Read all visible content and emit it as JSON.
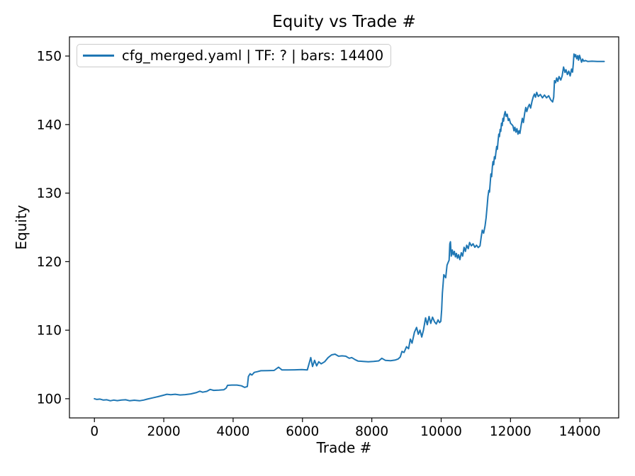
{
  "chart_data": {
    "type": "line",
    "title": "Equity vs Trade #",
    "xlabel": "Trade #",
    "ylabel": "Equity",
    "xlim": [
      -720,
      15120
    ],
    "ylim": [
      97.2,
      152.8
    ],
    "x_ticks": [
      0,
      2000,
      4000,
      6000,
      8000,
      10000,
      12000,
      14000
    ],
    "y_ticks": [
      100,
      110,
      120,
      130,
      140,
      150
    ],
    "grid": false,
    "legend_position": "upper left",
    "axis_color": "#000000",
    "series": [
      {
        "name": "cfg_merged.yaml | TF: ? | bars: 14400",
        "color": "#1f77b4",
        "points": [
          [
            0,
            100.0
          ],
          [
            70,
            99.9
          ],
          [
            160,
            99.95
          ],
          [
            260,
            99.8
          ],
          [
            360,
            99.85
          ],
          [
            460,
            99.7
          ],
          [
            560,
            99.8
          ],
          [
            660,
            99.72
          ],
          [
            780,
            99.8
          ],
          [
            900,
            99.85
          ],
          [
            1020,
            99.7
          ],
          [
            1150,
            99.78
          ],
          [
            1300,
            99.7
          ],
          [
            1420,
            99.8
          ],
          [
            1530,
            99.95
          ],
          [
            1680,
            100.12
          ],
          [
            1830,
            100.3
          ],
          [
            1980,
            100.5
          ],
          [
            2090,
            100.65
          ],
          [
            2200,
            100.58
          ],
          [
            2330,
            100.65
          ],
          [
            2470,
            100.55
          ],
          [
            2620,
            100.6
          ],
          [
            2780,
            100.7
          ],
          [
            2930,
            100.88
          ],
          [
            3040,
            101.1
          ],
          [
            3120,
            100.95
          ],
          [
            3240,
            101.08
          ],
          [
            3340,
            101.35
          ],
          [
            3440,
            101.22
          ],
          [
            3590,
            101.25
          ],
          [
            3730,
            101.3
          ],
          [
            3800,
            101.55
          ],
          [
            3840,
            101.95
          ],
          [
            3960,
            102.0
          ],
          [
            4110,
            102.0
          ],
          [
            4240,
            101.88
          ],
          [
            4330,
            101.65
          ],
          [
            4410,
            101.78
          ],
          [
            4440,
            103.25
          ],
          [
            4490,
            103.65
          ],
          [
            4540,
            103.45
          ],
          [
            4610,
            103.85
          ],
          [
            4700,
            103.95
          ],
          [
            4800,
            104.08
          ],
          [
            4990,
            104.1
          ],
          [
            5180,
            104.12
          ],
          [
            5310,
            104.6
          ],
          [
            5410,
            104.2
          ],
          [
            5590,
            104.2
          ],
          [
            5780,
            104.22
          ],
          [
            5980,
            104.25
          ],
          [
            6140,
            104.2
          ],
          [
            6200,
            105.3
          ],
          [
            6240,
            106.0
          ],
          [
            6290,
            104.7
          ],
          [
            6350,
            105.6
          ],
          [
            6410,
            104.8
          ],
          [
            6470,
            105.4
          ],
          [
            6540,
            105.1
          ],
          [
            6640,
            105.4
          ],
          [
            6740,
            106.0
          ],
          [
            6840,
            106.4
          ],
          [
            6940,
            106.5
          ],
          [
            7040,
            106.2
          ],
          [
            7140,
            106.25
          ],
          [
            7250,
            106.2
          ],
          [
            7350,
            105.9
          ],
          [
            7420,
            106.0
          ],
          [
            7520,
            105.7
          ],
          [
            7600,
            105.5
          ],
          [
            7750,
            105.45
          ],
          [
            7900,
            105.4
          ],
          [
            8050,
            105.45
          ],
          [
            8200,
            105.52
          ],
          [
            8290,
            105.9
          ],
          [
            8390,
            105.6
          ],
          [
            8540,
            105.55
          ],
          [
            8680,
            105.65
          ],
          [
            8760,
            105.8
          ],
          [
            8820,
            106.1
          ],
          [
            8870,
            106.9
          ],
          [
            8930,
            106.75
          ],
          [
            9000,
            107.6
          ],
          [
            9060,
            107.3
          ],
          [
            9110,
            108.7
          ],
          [
            9160,
            108.1
          ],
          [
            9230,
            109.7
          ],
          [
            9290,
            110.4
          ],
          [
            9340,
            109.4
          ],
          [
            9390,
            110.0
          ],
          [
            9440,
            109.0
          ],
          [
            9490,
            110.0
          ],
          [
            9550,
            111.8
          ],
          [
            9600,
            110.8
          ],
          [
            9650,
            112.0
          ],
          [
            9700,
            111.0
          ],
          [
            9750,
            111.9
          ],
          [
            9810,
            111.2
          ],
          [
            9860,
            110.9
          ],
          [
            9910,
            111.5
          ],
          [
            9955,
            111.1
          ],
          [
            9990,
            111.3
          ],
          [
            10015,
            113.0
          ],
          [
            10035,
            115.4
          ],
          [
            10055,
            116.7
          ],
          [
            10075,
            118.1
          ],
          [
            10100,
            117.9
          ],
          [
            10130,
            117.65
          ],
          [
            10170,
            119.5
          ],
          [
            10210,
            120.0
          ],
          [
            10230,
            120.2
          ],
          [
            10250,
            122.6
          ],
          [
            10268,
            122.9
          ],
          [
            10290,
            120.8
          ],
          [
            10320,
            121.7
          ],
          [
            10350,
            121.0
          ],
          [
            10380,
            121.5
          ],
          [
            10410,
            120.7
          ],
          [
            10440,
            121.2
          ],
          [
            10470,
            120.5
          ],
          [
            10500,
            121.0
          ],
          [
            10540,
            120.3
          ],
          [
            10580,
            121.3
          ],
          [
            10620,
            120.8
          ],
          [
            10660,
            122.1
          ],
          [
            10700,
            121.5
          ],
          [
            10735,
            122.4
          ],
          [
            10780,
            121.9
          ],
          [
            10820,
            122.8
          ],
          [
            10870,
            122.3
          ],
          [
            10920,
            122.6
          ],
          [
            10970,
            122.1
          ],
          [
            11020,
            122.4
          ],
          [
            11070,
            122.05
          ],
          [
            11120,
            122.3
          ],
          [
            11155,
            123.6
          ],
          [
            11185,
            124.6
          ],
          [
            11225,
            124.15
          ],
          [
            11265,
            125.2
          ],
          [
            11295,
            126.4
          ],
          [
            11325,
            128.0
          ],
          [
            11350,
            129.5
          ],
          [
            11375,
            130.4
          ],
          [
            11395,
            130.15
          ],
          [
            11415,
            131.5
          ],
          [
            11435,
            132.8
          ],
          [
            11455,
            132.4
          ],
          [
            11475,
            133.8
          ],
          [
            11495,
            134.6
          ],
          [
            11515,
            134.15
          ],
          [
            11535,
            135.3
          ],
          [
            11558,
            135.0
          ],
          [
            11580,
            136.0
          ],
          [
            11600,
            136.8
          ],
          [
            11620,
            136.4
          ],
          [
            11640,
            137.5
          ],
          [
            11662,
            138.6
          ],
          [
            11680,
            138.25
          ],
          [
            11700,
            139.3
          ],
          [
            11720,
            139.0
          ],
          [
            11740,
            140.2
          ],
          [
            11760,
            139.85
          ],
          [
            11780,
            140.9
          ],
          [
            11800,
            140.5
          ],
          [
            11822,
            141.4
          ],
          [
            11845,
            141.9
          ],
          [
            11875,
            141.2
          ],
          [
            11905,
            141.5
          ],
          [
            11935,
            140.6
          ],
          [
            11965,
            140.85
          ],
          [
            12000,
            140.2
          ],
          [
            12040,
            140.0
          ],
          [
            12070,
            139.8
          ],
          [
            12100,
            139.1
          ],
          [
            12125,
            139.6
          ],
          [
            12155,
            138.9
          ],
          [
            12185,
            139.4
          ],
          [
            12215,
            138.6
          ],
          [
            12245,
            139.1
          ],
          [
            12270,
            138.7
          ],
          [
            12310,
            140.0
          ],
          [
            12340,
            140.9
          ],
          [
            12370,
            140.3
          ],
          [
            12410,
            141.7
          ],
          [
            12440,
            142.5
          ],
          [
            12470,
            141.9
          ],
          [
            12510,
            142.6
          ],
          [
            12545,
            142.95
          ],
          [
            12580,
            142.4
          ],
          [
            12620,
            143.4
          ],
          [
            12660,
            144.1
          ],
          [
            12690,
            144.45
          ],
          [
            12720,
            144.0
          ],
          [
            12755,
            144.7
          ],
          [
            12800,
            144.1
          ],
          [
            12860,
            144.4
          ],
          [
            12920,
            143.9
          ],
          [
            12980,
            144.3
          ],
          [
            13040,
            143.9
          ],
          [
            13100,
            144.2
          ],
          [
            13160,
            143.6
          ],
          [
            13215,
            143.3
          ],
          [
            13245,
            144.0
          ],
          [
            13268,
            146.4
          ],
          [
            13300,
            146.1
          ],
          [
            13330,
            146.8
          ],
          [
            13365,
            146.3
          ],
          [
            13400,
            147.0
          ],
          [
            13450,
            146.5
          ],
          [
            13490,
            147.1
          ],
          [
            13530,
            148.4
          ],
          [
            13570,
            147.6
          ],
          [
            13600,
            148.0
          ],
          [
            13640,
            147.3
          ],
          [
            13680,
            147.8
          ],
          [
            13720,
            147.1
          ],
          [
            13760,
            148.1
          ],
          [
            13790,
            147.65
          ],
          [
            13810,
            148.8
          ],
          [
            13830,
            150.3
          ],
          [
            13858,
            149.9
          ],
          [
            13880,
            150.2
          ],
          [
            13910,
            149.6
          ],
          [
            13938,
            150.05
          ],
          [
            13962,
            149.4
          ],
          [
            13990,
            150.1
          ],
          [
            14020,
            149.6
          ],
          [
            14048,
            149.1
          ],
          [
            14080,
            149.55
          ],
          [
            14110,
            149.25
          ],
          [
            14160,
            149.35
          ],
          [
            14230,
            149.2
          ],
          [
            14350,
            149.25
          ],
          [
            14500,
            149.2
          ],
          [
            14700,
            149.2
          ]
        ]
      }
    ]
  }
}
